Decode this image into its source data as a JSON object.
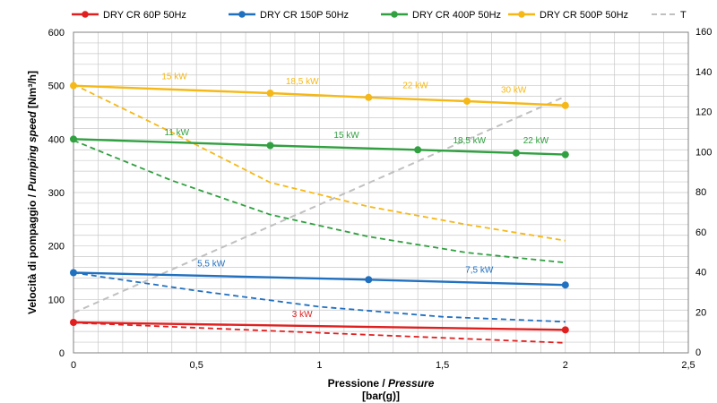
{
  "chart_data": {
    "type": "line",
    "xlabel_main": "Pressione / ",
    "xlabel_italic": "Pressure",
    "xlabel_unit": "[bar(g)]",
    "ylabel_main": "Velocità di pompaggio / ",
    "ylabel_italic": "Pumping speed",
    "ylabel_unit": " [Nm³/h]",
    "xlim": [
      0,
      2.5
    ],
    "ylim": [
      0,
      600
    ],
    "y2lim": [
      0,
      160
    ],
    "grid": true,
    "legend_position": "top",
    "x_ticks": [
      "0",
      "0,5",
      "1",
      "1,5",
      "2",
      "2,5"
    ],
    "y_ticks": [
      "0",
      "100",
      "200",
      "300",
      "400",
      "500",
      "600"
    ],
    "y2_ticks": [
      "0",
      "20",
      "40",
      "60",
      "80",
      "100",
      "120",
      "140",
      "160"
    ],
    "x_tick_values": [
      0,
      0.5,
      1,
      1.5,
      2,
      2.5
    ],
    "y_tick_values": [
      0,
      100,
      200,
      300,
      400,
      500,
      600
    ],
    "y2_tick_values": [
      0,
      20,
      40,
      60,
      80,
      100,
      120,
      140,
      160
    ],
    "series": [
      {
        "name": "DRY CR 60P 50Hz",
        "color": "#e02020",
        "speed": [
          [
            0,
            57
          ],
          [
            2,
            43
          ]
        ],
        "markers": [
          [
            0,
            57
          ],
          [
            2,
            43
          ]
        ],
        "power": [
          [
            0,
            15
          ],
          [
            1,
            10
          ],
          [
            2,
            5
          ]
        ],
        "power_labels": [
          {
            "text": "3 kW",
            "x": 0.93,
            "y": 67
          }
        ]
      },
      {
        "name": "DRY CR 150P 50Hz",
        "color": "#2070c0",
        "speed": [
          [
            0,
            150
          ],
          [
            1.2,
            137
          ],
          [
            2,
            127
          ]
        ],
        "markers": [
          [
            0,
            150
          ],
          [
            1.2,
            137
          ],
          [
            2,
            127
          ]
        ],
        "power": [
          [
            0,
            40
          ],
          [
            0.5,
            31
          ],
          [
            1,
            23
          ],
          [
            1.5,
            18
          ],
          [
            2,
            15.5
          ]
        ],
        "power_labels": [
          {
            "text": "5,5 kW",
            "x": 0.56,
            "y": 162
          },
          {
            "text": "7,5 kW",
            "x": 1.65,
            "y": 150
          }
        ]
      },
      {
        "name": "DRY CR 400P 50Hz",
        "color": "#30a040",
        "speed": [
          [
            0,
            400
          ],
          [
            0.8,
            388
          ],
          [
            1.4,
            380
          ],
          [
            1.8,
            374
          ],
          [
            2,
            371
          ]
        ],
        "markers": [
          [
            0,
            400
          ],
          [
            0.8,
            388
          ],
          [
            1.4,
            380
          ],
          [
            1.8,
            374
          ],
          [
            2,
            371
          ]
        ],
        "power": [
          [
            0,
            106
          ],
          [
            0.4,
            86
          ],
          [
            0.8,
            69
          ],
          [
            1.2,
            58
          ],
          [
            1.6,
            50
          ],
          [
            2,
            45
          ]
        ],
        "power_labels": [
          {
            "text": "11 kW",
            "x": 0.42,
            "y": 407
          },
          {
            "text": "15 kW",
            "x": 1.11,
            "y": 402
          },
          {
            "text": "18,5 kW",
            "x": 1.61,
            "y": 392
          },
          {
            "text": "22 kW",
            "x": 1.88,
            "y": 392
          }
        ]
      },
      {
        "name": "DRY CR 500P 50Hz",
        "color": "#f5b816",
        "speed": [
          [
            0,
            500
          ],
          [
            0.8,
            486
          ],
          [
            1.2,
            478
          ],
          [
            1.6,
            471
          ],
          [
            2,
            463
          ]
        ],
        "markers": [
          [
            0,
            500
          ],
          [
            0.8,
            486
          ],
          [
            1.2,
            478
          ],
          [
            1.6,
            471
          ],
          [
            2,
            463
          ]
        ],
        "power": [
          [
            0,
            134
          ],
          [
            0.4,
            110
          ],
          [
            0.8,
            85
          ],
          [
            1.2,
            73
          ],
          [
            1.6,
            64
          ],
          [
            2,
            56
          ]
        ],
        "power_labels": [
          {
            "text": "15 kW",
            "x": 0.41,
            "y": 512
          },
          {
            "text": "18,5 kW",
            "x": 0.93,
            "y": 503
          },
          {
            "text": "22 kW",
            "x": 1.39,
            "y": 495
          },
          {
            "text": "30 kW",
            "x": 1.79,
            "y": 487
          }
        ]
      }
    ],
    "temperature": {
      "name": "T",
      "color": "#c0c0c0",
      "values": [
        [
          0,
          20
        ],
        [
          2,
          128
        ]
      ]
    }
  }
}
